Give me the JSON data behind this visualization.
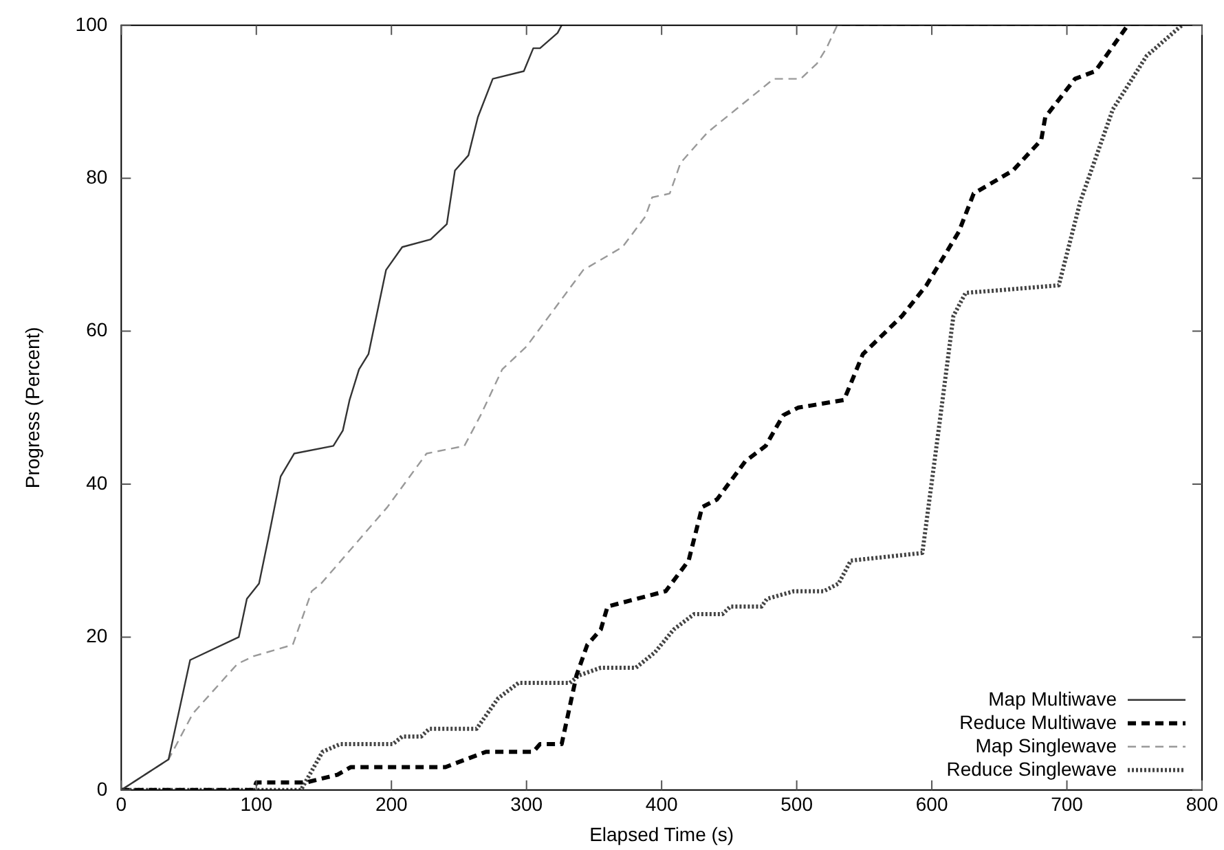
{
  "chart_data": {
    "type": "line",
    "xlabel": "Elapsed Time (s)",
    "ylabel": "Progress (Percent)",
    "xlim": [
      0,
      800
    ],
    "ylim": [
      0,
      100
    ],
    "xticks": [
      0,
      100,
      200,
      300,
      400,
      500,
      600,
      700,
      800
    ],
    "yticks": [
      0,
      20,
      40,
      60,
      80,
      100
    ],
    "grid": false,
    "legend": "bottom right",
    "marker": "none",
    "series": [
      {
        "name": "Map Multiwave",
        "color": "#333333",
        "line_style": "solid",
        "x": [
          0,
          35,
          51,
          87,
          93,
          102,
          109,
          118,
          128,
          157,
          164,
          169,
          176,
          183,
          196,
          208,
          229,
          241,
          247,
          257,
          264,
          275,
          298,
          305,
          310,
          323,
          326
        ],
        "values": [
          0,
          4,
          17,
          20,
          25,
          27,
          33,
          41,
          44,
          45,
          47,
          51,
          55,
          57,
          68,
          71,
          72,
          74,
          81,
          83,
          88,
          93,
          94,
          97,
          97,
          99,
          100
        ]
      },
      {
        "name": "Reduce Multiwave",
        "color": "#000000",
        "line_style": "dashed",
        "x": [
          0,
          98,
          100,
          137,
          160,
          170,
          240,
          255,
          270,
          305,
          310,
          326,
          337,
          345,
          355,
          360,
          403,
          420,
          430,
          441,
          462,
          477,
          490,
          501,
          535,
          549,
          578,
          596,
          620,
          631,
          660,
          681,
          684,
          706,
          721,
          745
        ],
        "values": [
          0,
          0,
          1,
          1,
          2,
          3,
          3,
          4,
          5,
          5,
          6,
          6,
          15,
          19,
          21,
          24,
          26,
          30,
          37,
          38,
          43,
          45,
          49,
          50,
          51,
          57,
          62,
          66,
          73,
          78,
          81,
          85,
          88,
          93,
          94,
          100
        ]
      },
      {
        "name": "Map Singlewave",
        "color": "#999999",
        "line_style": "dashed",
        "x": [
          0,
          35,
          53,
          86,
          98,
          127,
          141,
          148,
          197,
          226,
          254,
          266,
          282,
          300,
          342,
          371,
          388,
          393,
          406,
          414,
          434,
          462,
          483,
          503,
          515,
          522,
          530,
          785
        ],
        "values": [
          0,
          4,
          10,
          16.5,
          17.5,
          19,
          26,
          27,
          37,
          44,
          45,
          49,
          55,
          58,
          68,
          71,
          75,
          77.5,
          78,
          82,
          86,
          90,
          93,
          93,
          95,
          97,
          100,
          100
        ]
      },
      {
        "name": "Reduce Singlewave",
        "color": "#444444",
        "line_style": "dotted",
        "x": [
          0,
          133,
          149,
          162,
          201,
          208,
          222,
          228,
          263,
          279,
          294,
          332,
          339,
          355,
          381,
          395,
          409,
          424,
          445,
          451,
          474,
          478,
          498,
          520,
          531,
          540,
          593,
          605,
          616,
          625,
          694,
          710,
          734,
          759,
          785
        ],
        "values": [
          0,
          0,
          5,
          6,
          6,
          7,
          7,
          8,
          8,
          12,
          14,
          14,
          15,
          16,
          16,
          18,
          21,
          23,
          23,
          24,
          24,
          25,
          26,
          26,
          27,
          30,
          31,
          47,
          62,
          65,
          66,
          77,
          89,
          96,
          100
        ]
      }
    ]
  }
}
